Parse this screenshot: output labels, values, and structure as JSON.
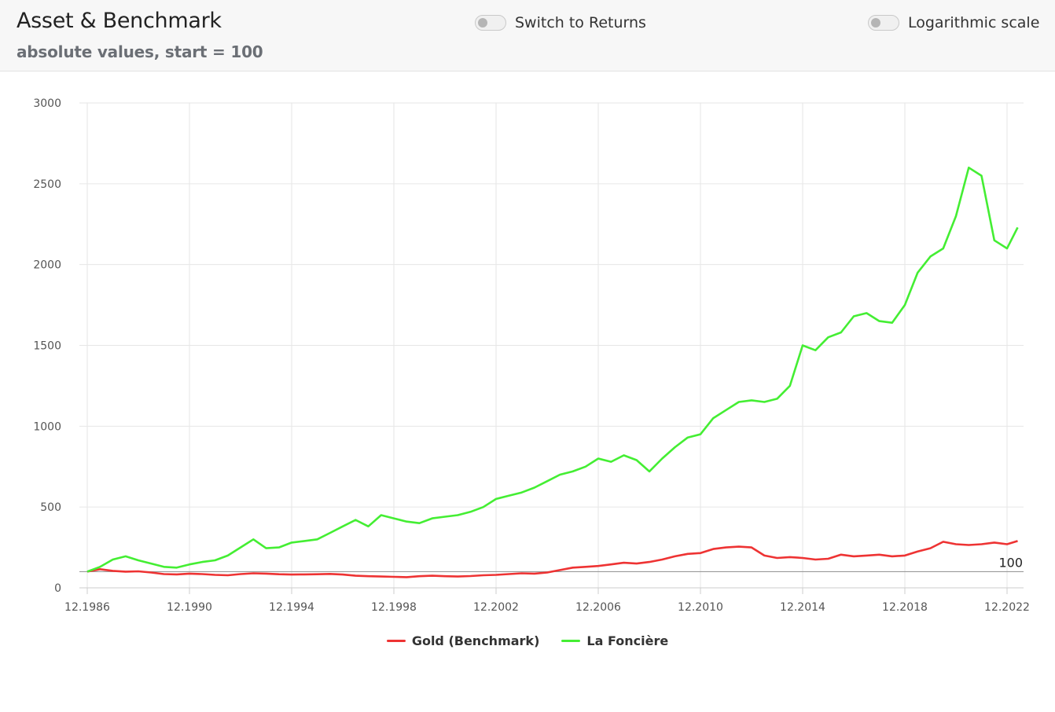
{
  "header": {
    "title": "Asset & Benchmark",
    "subtitle": "absolute values, start = 100",
    "toggle_returns": {
      "label": "Switch to Returns",
      "on": false
    },
    "toggle_log": {
      "label": "Logarithmic scale",
      "on": false
    }
  },
  "chart_data": {
    "type": "line",
    "title": "Asset & Benchmark",
    "subtitle": "absolute values, start = 100",
    "xlabel": "",
    "ylabel": "",
    "x_range": [
      "12.1986",
      "05.2023"
    ],
    "ylim": [
      0,
      3000
    ],
    "yticks": [
      0,
      500,
      1000,
      1500,
      2000,
      2500,
      3000
    ],
    "xticks": [
      "12.1986",
      "12.1990",
      "12.1994",
      "12.1998",
      "12.2002",
      "12.2006",
      "12.2010",
      "12.2014",
      "12.2018",
      "12.2022"
    ],
    "grid": true,
    "legend_position": "bottom",
    "reference_line": {
      "value": 100,
      "label": "100",
      "color": "#999999"
    },
    "series": [
      {
        "name": "Gold (Benchmark)",
        "color": "#ee3333",
        "points": [
          [
            "12.1986",
            100
          ],
          [
            "06.1987",
            115
          ],
          [
            "12.1987",
            105
          ],
          [
            "06.1988",
            100
          ],
          [
            "12.1988",
            102
          ],
          [
            "06.1989",
            95
          ],
          [
            "12.1989",
            85
          ],
          [
            "06.1990",
            83
          ],
          [
            "12.1990",
            88
          ],
          [
            "06.1991",
            85
          ],
          [
            "12.1991",
            80
          ],
          [
            "06.1992",
            78
          ],
          [
            "12.1992",
            85
          ],
          [
            "06.1993",
            90
          ],
          [
            "12.1993",
            88
          ],
          [
            "06.1994",
            84
          ],
          [
            "12.1994",
            82
          ],
          [
            "06.1995",
            83
          ],
          [
            "12.1995",
            84
          ],
          [
            "06.1996",
            86
          ],
          [
            "12.1996",
            82
          ],
          [
            "06.1997",
            75
          ],
          [
            "12.1997",
            72
          ],
          [
            "06.1998",
            70
          ],
          [
            "12.1998",
            68
          ],
          [
            "06.1999",
            66
          ],
          [
            "12.1999",
            72
          ],
          [
            "06.2000",
            75
          ],
          [
            "12.2000",
            72
          ],
          [
            "06.2001",
            70
          ],
          [
            "12.2001",
            73
          ],
          [
            "06.2002",
            78
          ],
          [
            "12.2002",
            80
          ],
          [
            "06.2003",
            85
          ],
          [
            "12.2003",
            90
          ],
          [
            "06.2004",
            88
          ],
          [
            "12.2004",
            95
          ],
          [
            "06.2005",
            110
          ],
          [
            "12.2005",
            125
          ],
          [
            "06.2006",
            130
          ],
          [
            "12.2006",
            135
          ],
          [
            "06.2007",
            145
          ],
          [
            "12.2007",
            155
          ],
          [
            "06.2008",
            150
          ],
          [
            "12.2008",
            160
          ],
          [
            "06.2009",
            175
          ],
          [
            "12.2009",
            195
          ],
          [
            "06.2010",
            210
          ],
          [
            "12.2010",
            215
          ],
          [
            "06.2011",
            240
          ],
          [
            "12.2011",
            250
          ],
          [
            "06.2012",
            255
          ],
          [
            "12.2012",
            250
          ],
          [
            "06.2013",
            200
          ],
          [
            "12.2013",
            185
          ],
          [
            "06.2014",
            190
          ],
          [
            "12.2014",
            185
          ],
          [
            "06.2015",
            175
          ],
          [
            "12.2015",
            180
          ],
          [
            "06.2016",
            205
          ],
          [
            "12.2016",
            195
          ],
          [
            "06.2017",
            200
          ],
          [
            "12.2017",
            205
          ],
          [
            "06.2018",
            195
          ],
          [
            "12.2018",
            200
          ],
          [
            "06.2019",
            225
          ],
          [
            "12.2019",
            245
          ],
          [
            "06.2020",
            285
          ],
          [
            "12.2020",
            270
          ],
          [
            "06.2021",
            265
          ],
          [
            "12.2021",
            270
          ],
          [
            "06.2022",
            280
          ],
          [
            "12.2022",
            270
          ],
          [
            "05.2023",
            290
          ]
        ]
      },
      {
        "name": "La Foncière",
        "color": "#44ee33",
        "points": [
          [
            "12.1986",
            100
          ],
          [
            "06.1987",
            130
          ],
          [
            "12.1987",
            175
          ],
          [
            "06.1988",
            195
          ],
          [
            "12.1988",
            170
          ],
          [
            "06.1989",
            150
          ],
          [
            "12.1989",
            130
          ],
          [
            "06.1990",
            125
          ],
          [
            "12.1990",
            145
          ],
          [
            "06.1991",
            160
          ],
          [
            "12.1991",
            170
          ],
          [
            "06.1992",
            200
          ],
          [
            "12.1992",
            250
          ],
          [
            "06.1993",
            300
          ],
          [
            "12.1993",
            245
          ],
          [
            "06.1994",
            250
          ],
          [
            "12.1994",
            280
          ],
          [
            "06.1995",
            290
          ],
          [
            "12.1995",
            300
          ],
          [
            "06.1996",
            340
          ],
          [
            "12.1996",
            380
          ],
          [
            "06.1997",
            420
          ],
          [
            "12.1997",
            380
          ],
          [
            "06.1998",
            450
          ],
          [
            "12.1998",
            430
          ],
          [
            "06.1999",
            410
          ],
          [
            "12.1999",
            400
          ],
          [
            "06.2000",
            430
          ],
          [
            "12.2000",
            440
          ],
          [
            "06.2001",
            450
          ],
          [
            "12.2001",
            470
          ],
          [
            "06.2002",
            500
          ],
          [
            "12.2002",
            550
          ],
          [
            "06.2003",
            570
          ],
          [
            "12.2003",
            590
          ],
          [
            "06.2004",
            620
          ],
          [
            "12.2004",
            660
          ],
          [
            "06.2005",
            700
          ],
          [
            "12.2005",
            720
          ],
          [
            "06.2006",
            750
          ],
          [
            "12.2006",
            800
          ],
          [
            "06.2007",
            780
          ],
          [
            "12.2007",
            820
          ],
          [
            "06.2008",
            790
          ],
          [
            "12.2008",
            720
          ],
          [
            "06.2009",
            800
          ],
          [
            "12.2009",
            870
          ],
          [
            "06.2010",
            930
          ],
          [
            "12.2010",
            950
          ],
          [
            "06.2011",
            1050
          ],
          [
            "12.2011",
            1100
          ],
          [
            "06.2012",
            1150
          ],
          [
            "12.2012",
            1160
          ],
          [
            "06.2013",
            1150
          ],
          [
            "12.2013",
            1170
          ],
          [
            "06.2014",
            1250
          ],
          [
            "12.2014",
            1500
          ],
          [
            "06.2015",
            1470
          ],
          [
            "12.2015",
            1550
          ],
          [
            "06.2016",
            1580
          ],
          [
            "12.2016",
            1680
          ],
          [
            "06.2017",
            1700
          ],
          [
            "12.2017",
            1650
          ],
          [
            "06.2018",
            1640
          ],
          [
            "12.2018",
            1750
          ],
          [
            "06.2019",
            1950
          ],
          [
            "12.2019",
            2050
          ],
          [
            "06.2020",
            2100
          ],
          [
            "12.2020",
            2300
          ],
          [
            "06.2021",
            2600
          ],
          [
            "12.2021",
            2550
          ],
          [
            "06.2022",
            2150
          ],
          [
            "12.2022",
            2100
          ],
          [
            "05.2023",
            2230
          ]
        ]
      }
    ]
  }
}
